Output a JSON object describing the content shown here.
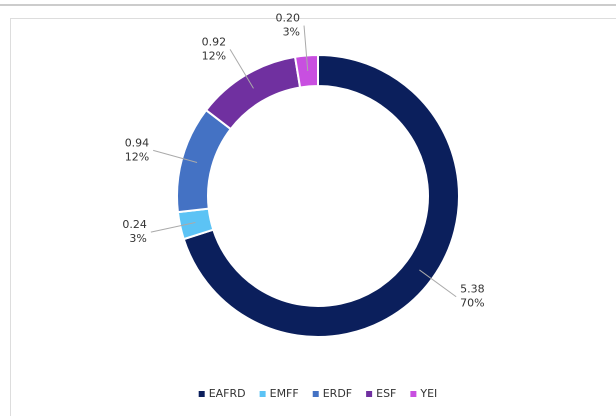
{
  "chart_data": {
    "type": "donut",
    "categories": [
      "EAFRD",
      "EMFF",
      "ERDF",
      "ESF",
      "YEI"
    ],
    "values": [
      5.38,
      0.24,
      0.94,
      0.92,
      0.2
    ],
    "value_labels": [
      "5.38",
      "0.24",
      "0.94",
      "0.92",
      "0.20"
    ],
    "percent_labels": [
      "70%",
      "3%",
      "12%",
      "12%",
      "3%"
    ],
    "colors": [
      "#0b1f5c",
      "#5cc3f5",
      "#4472c4",
      "#7030a0",
      "#c84fe0"
    ],
    "legend": "bottom"
  }
}
